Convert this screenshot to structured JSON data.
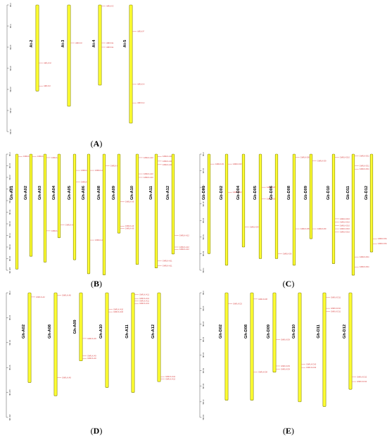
{
  "panels": [
    {
      "label": "A",
      "axis": {
        "max": 30,
        "ticks": [
          "0 Mb",
          "5 Mb",
          "10 Mb",
          "15 Mb",
          "20 Mb",
          "25 Mb",
          "30 Mb"
        ]
      },
      "chromosomes": [
        {
          "name": "At-2",
          "length": 20.4,
          "genes": [
            {
              "pos": 13.8,
              "id": "AtRLK-M"
            },
            {
              "pos": 19.2,
              "id": "AtRLK-F"
            }
          ]
        },
        {
          "name": "At-3",
          "length": 24.0,
          "genes": [
            {
              "pos": 9.0,
              "id": "AtRLK-F"
            }
          ]
        },
        {
          "name": "At-4",
          "length": 19.0,
          "genes": [
            {
              "pos": 0.3,
              "id": "AtRLK-D"
            },
            {
              "pos": 9.0,
              "id": "AtRLK-E"
            },
            {
              "pos": 10.0,
              "id": "AtRLK-E"
            }
          ]
        },
        {
          "name": "At-5",
          "length": 28.0,
          "genes": [
            {
              "pos": 6.3,
              "id": "AtRLK-F"
            },
            {
              "pos": 18.8,
              "id": "AtRLK-H"
            },
            {
              "pos": 23.2,
              "id": "AtRLK-H"
            }
          ]
        }
      ]
    },
    {
      "label": "B",
      "axis": {
        "max": 100,
        "ticks": [
          "0 Mb",
          "10 Mb",
          "20 Mb",
          "30 Mb",
          "40 Mb",
          "50 Mb",
          "60 Mb",
          "70 Mb",
          "80 Mb",
          "90 Mb",
          "100 Mb"
        ]
      },
      "chromosomes": [
        {
          "name": "Gh-A01",
          "length": 99,
          "genes": [
            {
              "pos": 2,
              "id": "GhRLK-A1"
            }
          ]
        },
        {
          "name": "Gh-A02",
          "length": 88,
          "genes": [
            {
              "pos": 2,
              "id": "GhRLK-A2"
            }
          ]
        },
        {
          "name": "Gh-A03",
          "length": 93,
          "genes": [
            {
              "pos": 3,
              "id": "GhRLK-A3"
            },
            {
              "pos": 66,
              "id": "GhRLK-A3"
            }
          ]
        },
        {
          "name": "Gh-A04",
          "length": 72,
          "genes": [
            {
              "pos": 61,
              "id": "GhRLK-A4"
            }
          ]
        },
        {
          "name": "Gh-A05",
          "length": 91,
          "genes": [
            {
              "pos": 14,
              "id": "GhRLK-A5"
            },
            {
              "pos": 24,
              "id": "GhRLK-A5"
            }
          ]
        },
        {
          "name": "Gh-A06",
          "length": 103,
          "genes": [
            {
              "pos": 14,
              "id": "GhRLK-A6"
            },
            {
              "pos": 74,
              "id": "GhRLK-A6"
            }
          ]
        },
        {
          "name": "Gh-A08",
          "length": 104,
          "genes": [
            {
              "pos": 10,
              "id": "GhRLK-A8"
            }
          ]
        },
        {
          "name": "Gh-A09",
          "length": 68,
          "genes": [
            {
              "pos": 41,
              "id": "GhRLK-A9"
            },
            {
              "pos": 62,
              "id": "GhRLK-A9"
            },
            {
              "pos": 64,
              "id": "GhRLK-A9"
            }
          ]
        },
        {
          "name": "Gh-A10",
          "length": 95,
          "genes": [
            {
              "pos": 3,
              "id": "GhRLK-A10"
            },
            {
              "pos": 17,
              "id": "GhRLK-A10"
            },
            {
              "pos": 20,
              "id": "GhRLK-A10"
            }
          ]
        },
        {
          "name": "Gh-A11",
          "length": 98,
          "genes": [
            {
              "pos": 2,
              "id": "GhRLK-A11"
            },
            {
              "pos": 6,
              "id": "GhRLK-A11"
            },
            {
              "pos": 9,
              "id": "GhRLK-A11"
            },
            {
              "pos": 92,
              "id": "GhRLK-A11"
            },
            {
              "pos": 96,
              "id": "GhRLK-A11"
            }
          ]
        },
        {
          "name": "Gh-A12",
          "length": 86,
          "genes": [
            {
              "pos": 70,
              "id": "GhRLK-A12"
            },
            {
              "pos": 80,
              "id": "GhRLK-A12"
            },
            {
              "pos": 82,
              "id": "GhRLK-A12"
            }
          ]
        }
      ]
    },
    {
      "label": "C",
      "axis": {
        "max": 70,
        "ticks": [
          "0 Mb",
          "10 Mb",
          "20 Mb",
          "30 Mb",
          "40 Mb",
          "50 Mb",
          "60 Mb",
          "70 Mb"
        ]
      },
      "chromosomes": [
        {
          "name": "Gb-D01",
          "length": 60,
          "genes": [
            {
              "pos": 6,
              "id": "GbRLK-D1"
            }
          ]
        },
        {
          "name": "Gb-D02",
          "length": 67,
          "genes": [
            {
              "pos": 6,
              "id": "GbRLK-D2"
            },
            {
              "pos": 23,
              "id": "GbRLK-D2"
            }
          ]
        },
        {
          "name": "Gb-D04",
          "length": 56,
          "genes": [
            {
              "pos": 44,
              "id": "GbRLK-D4"
            }
          ]
        },
        {
          "name": "Gb-D05",
          "length": 63,
          "genes": [
            {
              "pos": 20,
              "id": "GbRLK-D5"
            },
            {
              "pos": 27,
              "id": "GbRLK-D5"
            }
          ]
        },
        {
          "name": "Gb-D06",
          "length": 63,
          "genes": [
            {
              "pos": 60,
              "id": "GbRLK-D6"
            }
          ]
        },
        {
          "name": "Gb-D08",
          "length": 67,
          "genes": [
            {
              "pos": 2,
              "id": "GbRLK-D8"
            },
            {
              "pos": 45,
              "id": "GbRLK-D8"
            }
          ]
        },
        {
          "name": "Gb-D09",
          "length": 51,
          "genes": [
            {
              "pos": 4,
              "id": "GbRLK-D9"
            },
            {
              "pos": 45,
              "id": "GbRLK-D9"
            }
          ]
        },
        {
          "name": "Gb-D10",
          "length": 66,
          "genes": [
            {
              "pos": 2,
              "id": "GbRLK-D10"
            },
            {
              "pos": 39,
              "id": "GbRLK-D10"
            },
            {
              "pos": 41,
              "id": "GbRLK-D10"
            },
            {
              "pos": 43,
              "id": "GbRLK-D10"
            },
            {
              "pos": 45,
              "id": "GbRLK-D10"
            },
            {
              "pos": 47,
              "id": "GbRLK-D10"
            }
          ]
        },
        {
          "name": "Gb-D11",
          "length": 73,
          "genes": [
            {
              "pos": 1,
              "id": "GbRLK-D11"
            },
            {
              "pos": 7,
              "id": "GbRLK-D11"
            },
            {
              "pos": 9,
              "id": "GbRLK-D11"
            },
            {
              "pos": 62,
              "id": "GbRLK-D11"
            },
            {
              "pos": 68,
              "id": "GbRLK-D11"
            }
          ]
        },
        {
          "name": "Gb-D12",
          "length": 59,
          "genes": [
            {
              "pos": 51,
              "id": "GbRLK-D12"
            },
            {
              "pos": 54,
              "id": "GbRLK-D12"
            }
          ]
        }
      ]
    },
    {
      "label": "D",
      "axis": {
        "max": 150,
        "ticks": [
          "0 Mb",
          "30 Mb",
          "60 Mb",
          "90 Mb",
          "120 Mb",
          "150 Mb"
        ]
      },
      "chromosomes": [
        {
          "name": "Gh-A02",
          "length": 108,
          "genes": [
            {
              "pos": 5,
              "id": "GhRLK-A2"
            }
          ]
        },
        {
          "name": "Gh-A08",
          "length": 124,
          "genes": [
            {
              "pos": 3,
              "id": "GhRLK-A8"
            },
            {
              "pos": 102,
              "id": "GhRLK-A8"
            }
          ]
        },
        {
          "name": "Gh-A09",
          "length": 82,
          "genes": [
            {
              "pos": 55,
              "id": "GhRLK-A9"
            },
            {
              "pos": 76,
              "id": "GhRLK-A9"
            },
            {
              "pos": 79,
              "id": "GhRLK-A9"
            }
          ]
        },
        {
          "name": "Gh-A10",
          "length": 114,
          "genes": [
            {
              "pos": 20,
              "id": "GhRLK-A10"
            },
            {
              "pos": 23,
              "id": "GhRLK-A10"
            }
          ]
        },
        {
          "name": "Gh-A11",
          "length": 120,
          "genes": [
            {
              "pos": 2,
              "id": "GhRLK-A11"
            },
            {
              "pos": 7,
              "id": "GhRLK-A11"
            },
            {
              "pos": 10,
              "id": "GhRLK-A11"
            },
            {
              "pos": 13,
              "id": "GhRLK-A11"
            }
          ]
        },
        {
          "name": "Gh-A12",
          "length": 107,
          "genes": [
            {
              "pos": 101,
              "id": "GhRLK-A12"
            },
            {
              "pos": 104,
              "id": "GhRLK-A12"
            }
          ]
        }
      ]
    },
    {
      "label": "E",
      "axis": {
        "max": 80,
        "ticks": [
          "0 Mb",
          "10 Mb",
          "20 Mb",
          "30 Mb",
          "40 Mb",
          "50 Mb",
          "60 Mb",
          "70 Mb",
          "80 Mb"
        ]
      },
      "chromosomes": [
        {
          "name": "Gh-D02",
          "length": 69,
          "genes": [
            {
              "pos": 7,
              "id": "GhRLK-D2"
            }
          ]
        },
        {
          "name": "Gh-D08",
          "length": 69,
          "genes": [
            {
              "pos": 4,
              "id": "GhRLK-D8"
            },
            {
              "pos": 51,
              "id": "GhRLK-D8"
            }
          ]
        },
        {
          "name": "Gh-D09",
          "length": 51,
          "genes": [
            {
              "pos": 30,
              "id": "GhRLK-D9"
            },
            {
              "pos": 47,
              "id": "GhRLK-D9"
            },
            {
              "pos": 49,
              "id": "GhRLK-D9"
            }
          ]
        },
        {
          "name": "Gh-D10",
          "length": 70,
          "genes": [
            {
              "pos": 46,
              "id": "GhRLK-D10"
            },
            {
              "pos": 48,
              "id": "GhRLK-D10"
            }
          ]
        },
        {
          "name": "Gh-D11",
          "length": 73,
          "genes": [
            {
              "pos": 3,
              "id": "GhRLK-D11"
            },
            {
              "pos": 10,
              "id": "GhRLK-D11"
            },
            {
              "pos": 12,
              "id": "GhRLK-D11"
            }
          ]
        },
        {
          "name": "Gh-D12",
          "length": 62,
          "genes": [
            {
              "pos": 54,
              "id": "GhRLK-D12"
            },
            {
              "pos": 57,
              "id": "GhRLK-D12"
            }
          ]
        }
      ]
    }
  ]
}
